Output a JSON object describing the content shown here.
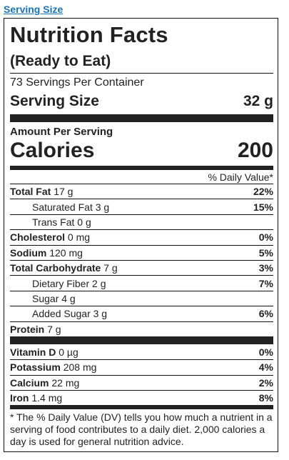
{
  "link": {
    "serving_size": "Serving Size"
  },
  "label": {
    "title": "Nutrition Facts",
    "subtitle": "(Ready to Eat)",
    "servings_per_container": "73 Servings Per Container",
    "serving_size_label": "Serving Size",
    "serving_size_value": "32 g",
    "amount_per_serving": "Amount Per Serving",
    "calories_label": "Calories",
    "calories_value": "200",
    "daily_value_header": "% Daily Value*",
    "nutrients": [
      {
        "name": "Total Fat",
        "amount": "17 g",
        "dv": "22%"
      },
      {
        "name": "Saturated Fat",
        "amount": "3 g",
        "dv": "15%"
      },
      {
        "name": "Trans Fat",
        "amount": "0 g",
        "dv": ""
      },
      {
        "name": "Cholesterol",
        "amount": "0 mg",
        "dv": "0%"
      },
      {
        "name": "Sodium",
        "amount": "120 mg",
        "dv": "5%"
      },
      {
        "name": "Total Carbohydrate",
        "amount": "7 g",
        "dv": "3%"
      },
      {
        "name": "Dietary Fiber",
        "amount": "2 g",
        "dv": "7%"
      },
      {
        "name": "Sugar",
        "amount": "4 g",
        "dv": ""
      },
      {
        "name": "Added Sugar",
        "amount": "3 g",
        "dv": "6%"
      },
      {
        "name": "Protein",
        "amount": "7 g",
        "dv": ""
      }
    ],
    "vitamins": [
      {
        "name": "Vitamin D",
        "amount": "0 µg",
        "dv": "0%"
      },
      {
        "name": "Potassium",
        "amount": "208 mg",
        "dv": "4%"
      },
      {
        "name": "Calcium",
        "amount": "22 mg",
        "dv": "2%"
      },
      {
        "name": "Iron",
        "amount": "1.4 mg",
        "dv": "8%"
      }
    ],
    "footnote": "* The % Daily Value (DV) tells you how much a nutrient in a serving of food contributes to a daily diet. 2,000 calories a day is used for general nutrition advice."
  }
}
